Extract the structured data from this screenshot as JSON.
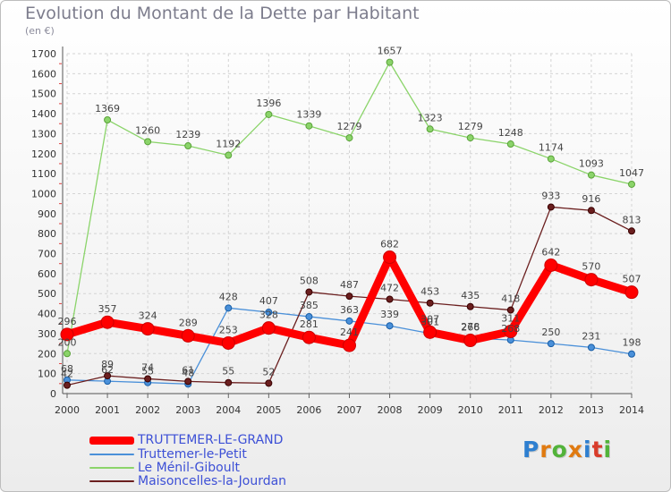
{
  "title": "Evolution du Montant de la Dette par Habitant",
  "unit": "(en €)",
  "logo": {
    "text": "Proxiti"
  },
  "chart_data": {
    "type": "line",
    "x": [
      "2000",
      "2001",
      "2002",
      "2003",
      "2004",
      "2005",
      "2006",
      "2007",
      "2008",
      "2009",
      "2010",
      "2011",
      "2012",
      "2013",
      "2014"
    ],
    "yticks": [
      0,
      100,
      200,
      300,
      400,
      500,
      600,
      700,
      800,
      900,
      1000,
      1100,
      1200,
      1300,
      1400,
      1500,
      1600,
      1700
    ],
    "ylim": [
      0,
      1700
    ],
    "grid": true,
    "legend": "bottom-left",
    "series": [
      {
        "name": "Le Ménil-Giboult",
        "color": "#8bd46a",
        "values": [
          200,
          1369,
          1260,
          1239,
          1192,
          1396,
          1339,
          1279,
          1657,
          1323,
          1279,
          1248,
          1174,
          1093,
          1047
        ]
      },
      {
        "name": "Truttemer-le-Petit",
        "color": "#4a90d9",
        "values": [
          68,
          62,
          55,
          48,
          428,
          407,
          385,
          363,
          339,
          301,
          278,
          268,
          250,
          231,
          198
        ]
      },
      {
        "name": "Maisoncelles-la-Jourdan",
        "color": "#6b1f1f",
        "values": [
          42,
          89,
          74,
          61,
          55,
          52,
          508,
          487,
          472,
          453,
          435,
          418,
          933,
          916,
          813
        ]
      },
      {
        "name": "TRUTTEMER-LE-GRAND",
        "color": "#ff0000",
        "values": [
          296,
          357,
          324,
          289,
          253,
          328,
          281,
          241,
          682,
          307,
          266,
          311,
          642,
          570,
          507
        ]
      }
    ]
  }
}
